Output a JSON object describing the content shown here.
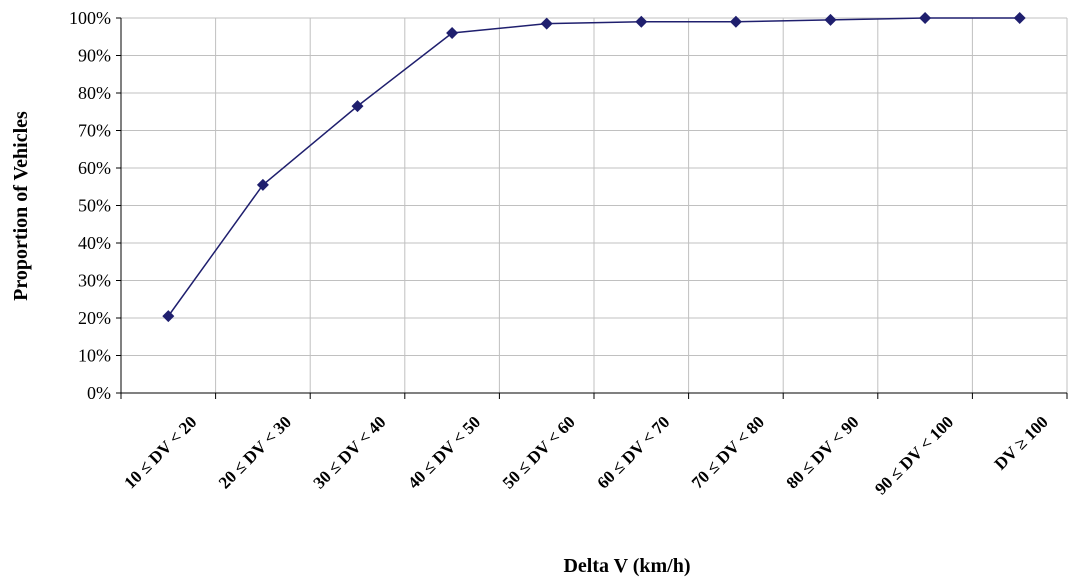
{
  "chart_data": {
    "type": "line",
    "title": "",
    "xlabel": "Delta V (km/h)",
    "ylabel": "Proportion of Vehicles",
    "categories": [
      "10 ≤ DV < 20",
      "20 ≤ DV < 30",
      "30 ≤ DV < 40",
      "40 ≤ DV < 50",
      "50 ≤ DV < 60",
      "60 ≤ DV < 70",
      "70 ≤ DV < 80",
      "80 ≤ DV < 90",
      "90 ≤ DV < 100",
      "DV ≥ 100"
    ],
    "series": [
      {
        "values": [
          0.205,
          0.555,
          0.765,
          0.96,
          0.985,
          0.99,
          0.99,
          0.995,
          1.0,
          1.0
        ]
      }
    ],
    "ylim": [
      0,
      1
    ],
    "yticks": [
      "0%",
      "10%",
      "20%",
      "30%",
      "40%",
      "50%",
      "60%",
      "70%",
      "80%",
      "90%",
      "100%"
    ],
    "grid": true,
    "legend": "none",
    "line_color": "#1f1f6e",
    "marker": "diamond",
    "grid_color": "#c0c0c0"
  }
}
